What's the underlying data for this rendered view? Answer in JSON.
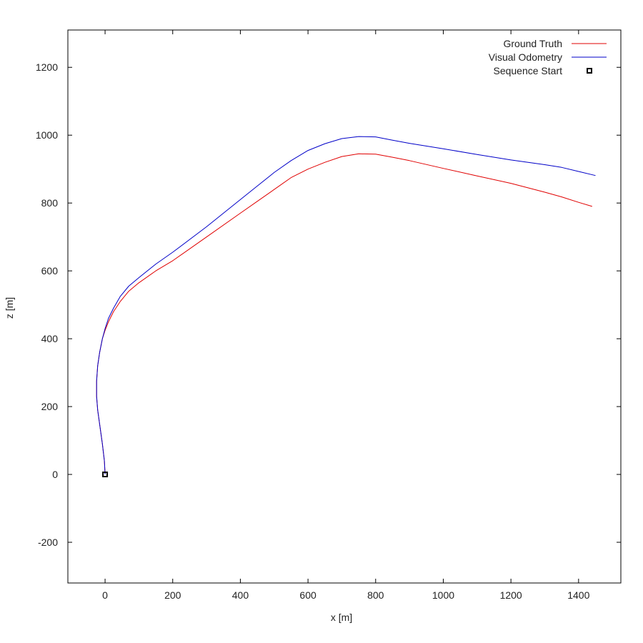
{
  "chart_data": {
    "type": "line",
    "xlabel": "x [m]",
    "ylabel": "z [m]",
    "xlim": [
      -110,
      1525
    ],
    "ylim": [
      -320,
      1310
    ],
    "xticks": [
      0,
      200,
      400,
      600,
      800,
      1000,
      1200,
      1400
    ],
    "yticks": [
      -200,
      0,
      200,
      400,
      600,
      800,
      1000,
      1200
    ],
    "grid": false,
    "legend_position": "top-right",
    "series": [
      {
        "name": "Ground Truth",
        "color": "#e00000",
        "points": [
          [
            0,
            0
          ],
          [
            -2,
            40
          ],
          [
            -8,
            90
          ],
          [
            -15,
            140
          ],
          [
            -22,
            190
          ],
          [
            -25,
            230
          ],
          [
            -25,
            275
          ],
          [
            -22,
            320
          ],
          [
            -16,
            360
          ],
          [
            -8,
            400
          ],
          [
            0,
            425
          ],
          [
            10,
            450
          ],
          [
            25,
            480
          ],
          [
            45,
            510
          ],
          [
            70,
            540
          ],
          [
            100,
            565
          ],
          [
            150,
            600
          ],
          [
            200,
            630
          ],
          [
            300,
            700
          ],
          [
            400,
            770
          ],
          [
            450,
            805
          ],
          [
            500,
            840
          ],
          [
            550,
            875
          ],
          [
            600,
            900
          ],
          [
            650,
            920
          ],
          [
            700,
            937
          ],
          [
            750,
            945
          ],
          [
            800,
            944
          ],
          [
            850,
            935
          ],
          [
            900,
            925
          ],
          [
            1000,
            902
          ],
          [
            1100,
            880
          ],
          [
            1200,
            858
          ],
          [
            1300,
            832
          ],
          [
            1350,
            818
          ],
          [
            1400,
            802
          ],
          [
            1440,
            790
          ]
        ]
      },
      {
        "name": "Visual Odometry",
        "color": "#0000c8",
        "points": [
          [
            0,
            0
          ],
          [
            -2,
            40
          ],
          [
            -8,
            90
          ],
          [
            -15,
            140
          ],
          [
            -22,
            190
          ],
          [
            -25,
            230
          ],
          [
            -25,
            275
          ],
          [
            -22,
            320
          ],
          [
            -16,
            360
          ],
          [
            -8,
            400
          ],
          [
            0,
            430
          ],
          [
            10,
            460
          ],
          [
            25,
            490
          ],
          [
            45,
            525
          ],
          [
            70,
            555
          ],
          [
            100,
            580
          ],
          [
            150,
            620
          ],
          [
            200,
            655
          ],
          [
            300,
            730
          ],
          [
            400,
            810
          ],
          [
            450,
            850
          ],
          [
            500,
            890
          ],
          [
            550,
            925
          ],
          [
            600,
            955
          ],
          [
            650,
            975
          ],
          [
            700,
            990
          ],
          [
            750,
            996
          ],
          [
            800,
            995
          ],
          [
            850,
            985
          ],
          [
            900,
            976
          ],
          [
            1000,
            960
          ],
          [
            1100,
            943
          ],
          [
            1200,
            927
          ],
          [
            1300,
            913
          ],
          [
            1350,
            905
          ],
          [
            1400,
            893
          ],
          [
            1450,
            881
          ]
        ]
      },
      {
        "name": "Sequence Start",
        "color": "#000000",
        "marker": "square",
        "points": [
          [
            0,
            0
          ]
        ]
      }
    ]
  }
}
